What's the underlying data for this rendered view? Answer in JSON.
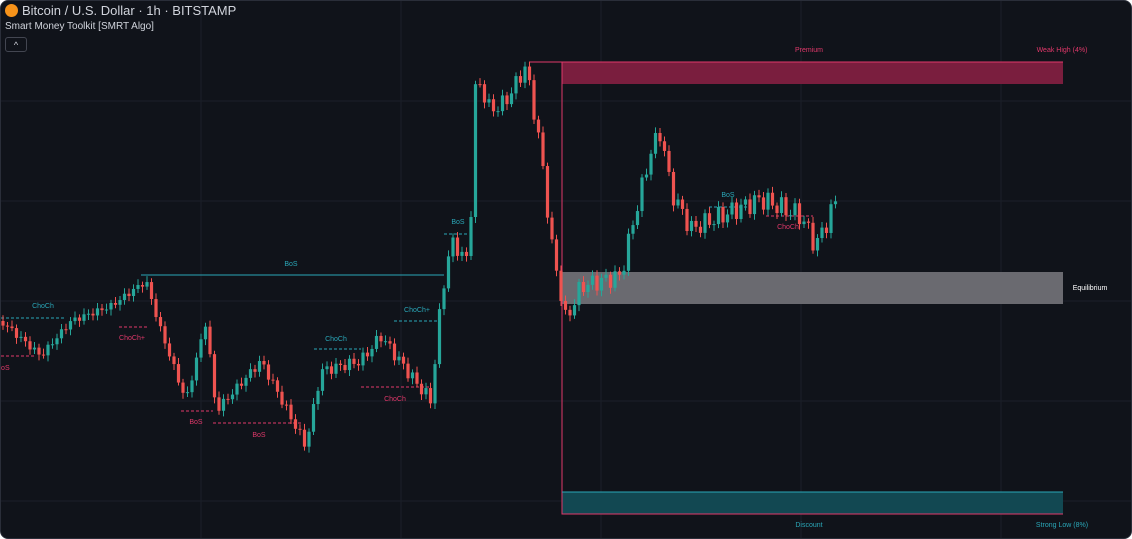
{
  "header": {
    "symbol": "Bitcoin / U.S. Dollar · 1h · BITSTAMP",
    "indicator": "Smart Money Toolkit [SMRT Algo]"
  },
  "zones": {
    "premium": "Premium",
    "weak_high": "Weak High (4%)",
    "equilibrium": "Equilibrium",
    "discount": "Discount",
    "strong_low": "Strong Low (8%)"
  },
  "structure_labels": [
    "ChoCh",
    "BoS",
    "ChoCh+",
    "BoS",
    "BoS",
    "BoS",
    "ChoCh",
    "ChoCh",
    "ChoCh+",
    "BoS",
    "BoS",
    "ChoCh"
  ]
}
